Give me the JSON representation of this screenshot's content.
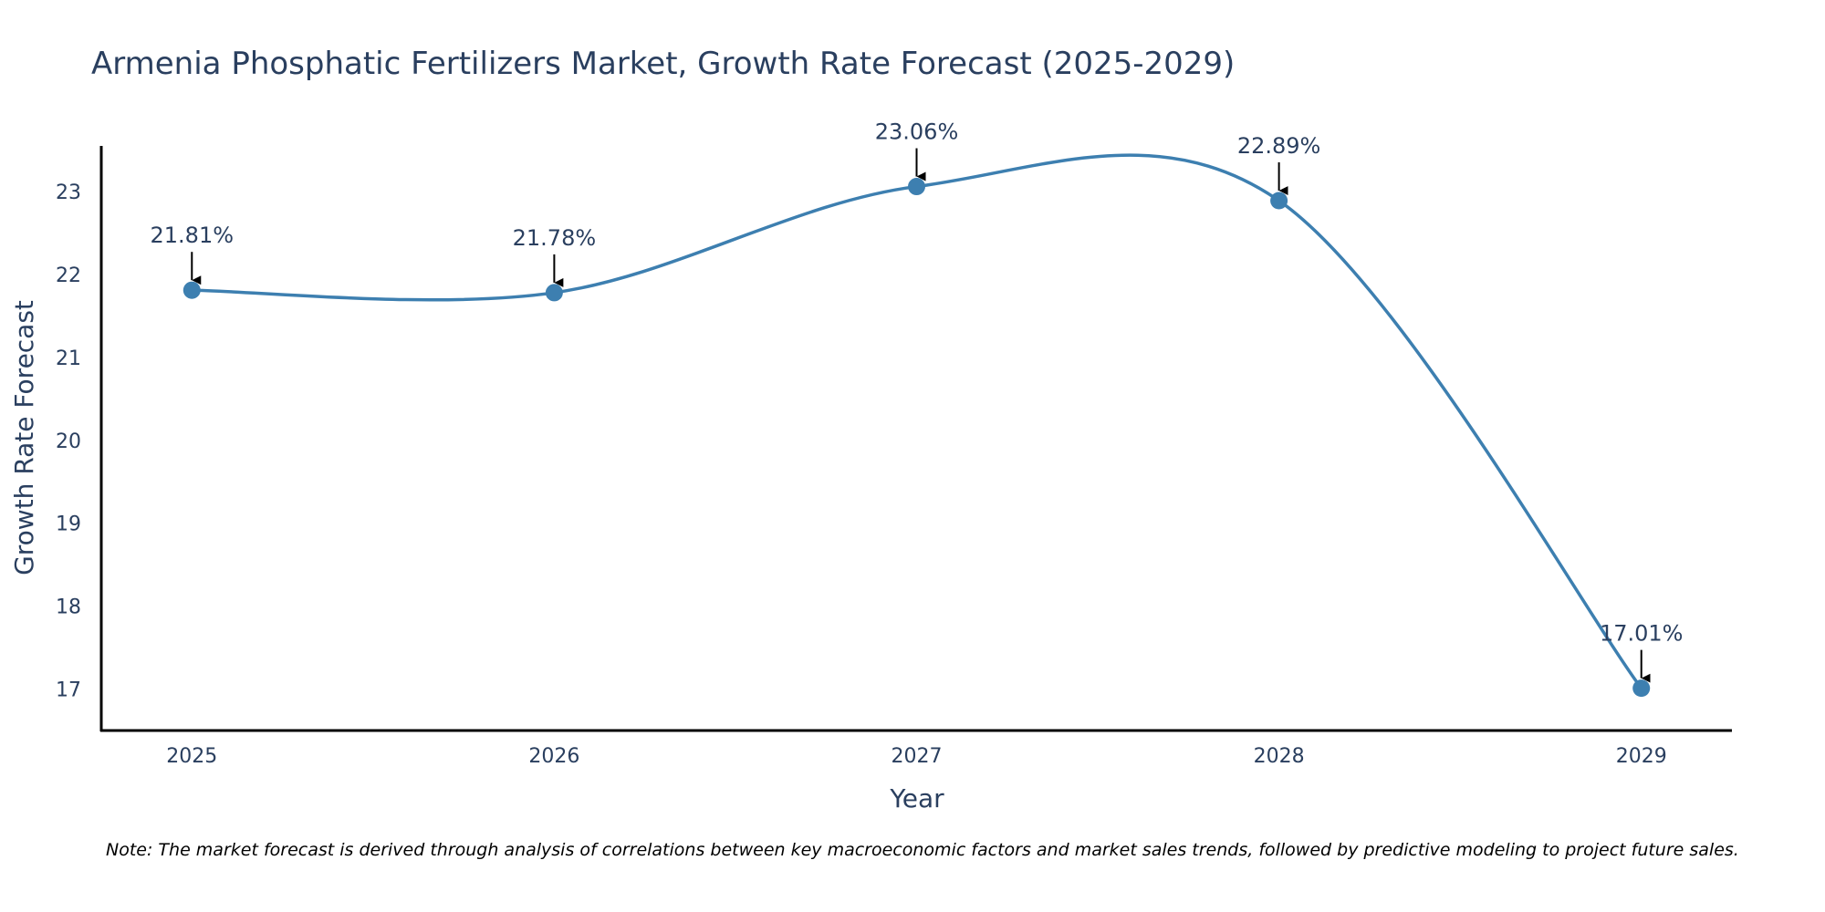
{
  "chart_data": {
    "type": "line",
    "title": "Armenia Phosphatic Fertilizers Market, Growth Rate Forecast (2025-2029)",
    "xlabel": "Year",
    "ylabel": "Growth Rate Forecast",
    "categories": [
      "2025",
      "2026",
      "2027",
      "2028",
      "2029"
    ],
    "x": [
      2025,
      2026,
      2027,
      2028,
      2029
    ],
    "series": [
      {
        "name": "Growth Rate Forecast",
        "values": [
          21.81,
          21.78,
          23.06,
          22.89,
          17.01
        ],
        "labels": [
          "21.81%",
          "21.78%",
          "23.06%",
          "22.89%",
          "17.01%"
        ],
        "color": "#3d7fb0",
        "line_shape": "spline"
      }
    ],
    "ylim": [
      16.5,
      23.55
    ],
    "yticks": [
      17,
      18,
      19,
      20,
      21,
      22,
      23
    ],
    "xlim": [
      2024.75,
      2029.25
    ],
    "grid": false,
    "legend": "none",
    "annotation_arrow_color": "#000000",
    "note": "Note: The market forecast is derived through analysis of correlations between key macroeconomic factors and market sales trends, followed by predictive modeling to project future sales."
  }
}
